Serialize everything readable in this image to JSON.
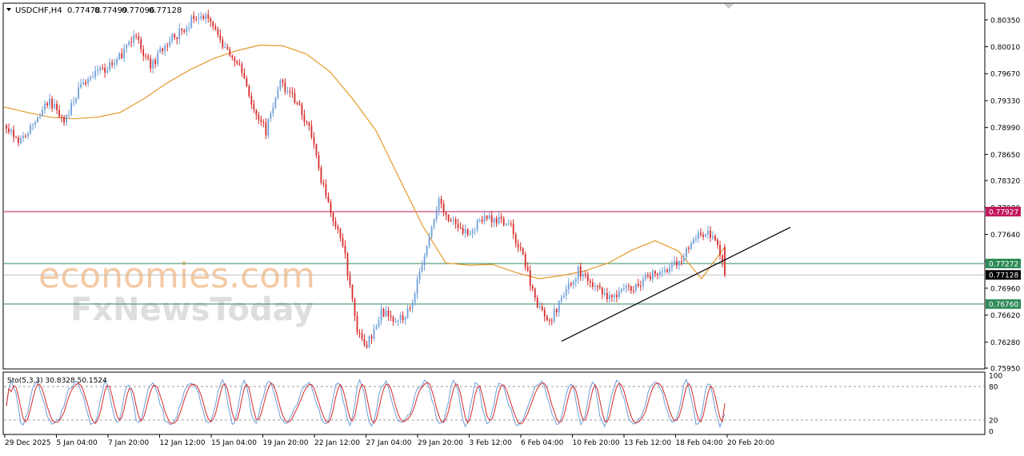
{
  "chart_data": {
    "type": "candlestick",
    "symbol_header": "USDCHF,H4",
    "ohlc_readout": [
      "0.77478",
      "0.77499",
      "0.77096",
      "0.77128"
    ],
    "price_axis_ticks": [
      "0.80350",
      "0.80010",
      "0.79670",
      "0.79330",
      "0.78990",
      "0.78650",
      "0.78320",
      "0.77980",
      "0.77640",
      "0.77300",
      "0.76960",
      "0.76620",
      "0.76280",
      "0.75950"
    ],
    "ylim": [
      0.7595,
      0.8055
    ],
    "time_axis_labels": [
      "29 Dec 2025",
      "5 Jan 04:00",
      "7 Jan 20:00",
      "12 Jan 12:00",
      "15 Jan 04:00",
      "19 Jan 20:00",
      "22 Jan 12:00",
      "27 Jan 04:00",
      "29 Jan 20:00",
      "3 Feb 12:00",
      "6 Feb 04:00",
      "10 Feb 20:00",
      "13 Feb 12:00",
      "18 Feb 04:00",
      "20 Feb 20:00"
    ],
    "price_levels": [
      {
        "label": "0.77927",
        "value": 0.77927,
        "color": "#c2185b"
      },
      {
        "label": "0.77272",
        "value": 0.77272,
        "color": "#2e8b57"
      },
      {
        "label": "0.77128",
        "value": 0.77128,
        "color": "#000000"
      },
      {
        "label": "0.76760",
        "value": 0.7676,
        "color": "#2e8b57"
      }
    ],
    "trendline": [
      [
        0.0,
        0.7629
      ],
      [
        1.0,
        0.7773
      ]
    ],
    "ma_color": "#e39a2b",
    "bull_color": "#6f9fd8",
    "bear_color": "#d62a2a",
    "close_path": [
      [
        0,
        0.7895
      ],
      [
        6,
        0.788
      ],
      [
        12,
        0.7908
      ],
      [
        18,
        0.7932
      ],
      [
        24,
        0.7905
      ],
      [
        30,
        0.7945
      ],
      [
        36,
        0.7965
      ],
      [
        42,
        0.7975
      ],
      [
        48,
        0.799
      ],
      [
        54,
        0.8015
      ],
      [
        60,
        0.7975
      ],
      [
        66,
        0.8005
      ],
      [
        72,
        0.8018
      ],
      [
        78,
        0.8038
      ],
      [
        84,
        0.8042
      ],
      [
        90,
        0.8002
      ],
      [
        96,
        0.7985
      ],
      [
        102,
        0.793
      ],
      [
        108,
        0.7895
      ],
      [
        114,
        0.7955
      ],
      [
        120,
        0.7935
      ],
      [
        126,
        0.7898
      ],
      [
        132,
        0.7822
      ],
      [
        136,
        0.7785
      ],
      [
        140,
        0.7755
      ],
      [
        146,
        0.7642
      ],
      [
        150,
        0.7622
      ],
      [
        156,
        0.7668
      ],
      [
        162,
        0.7652
      ],
      [
        168,
        0.767
      ],
      [
        174,
        0.774
      ],
      [
        180,
        0.7805
      ],
      [
        186,
        0.7778
      ],
      [
        192,
        0.7762
      ],
      [
        198,
        0.7785
      ],
      [
        204,
        0.7782
      ],
      [
        210,
        0.7772
      ],
      [
        216,
        0.7728
      ],
      [
        220,
        0.7678
      ],
      [
        226,
        0.7655
      ],
      [
        232,
        0.7685
      ],
      [
        238,
        0.7718
      ],
      [
        244,
        0.7702
      ],
      [
        250,
        0.7688
      ],
      [
        256,
        0.769
      ],
      [
        262,
        0.77
      ],
      [
        268,
        0.7712
      ],
      [
        274,
        0.7718
      ],
      [
        280,
        0.7728
      ],
      [
        286,
        0.7758
      ],
      [
        292,
        0.7765
      ],
      [
        296,
        0.7748
      ],
      [
        299,
        0.7713
      ]
    ],
    "ma_values": [
      0.7925,
      0.7918,
      0.7912,
      0.791,
      0.7912,
      0.7918,
      0.7935,
      0.7955,
      0.7972,
      0.7986,
      0.7996,
      0.8003,
      0.8002,
      0.7992,
      0.797,
      0.7935,
      0.7895,
      0.7835,
      0.7775,
      0.7728,
      0.7725,
      0.7726,
      0.7716,
      0.7708,
      0.7712,
      0.7718,
      0.7728,
      0.7744,
      0.7756,
      0.7743,
      0.7708,
      0.7748
    ],
    "oscillator": {
      "label": "Sto(5,3,3) 30.8328 50.1524",
      "levels": [
        "100",
        "80",
        "20",
        "0"
      ],
      "main_color": "#d62a2a",
      "signal_color": "#6f9fd8"
    }
  },
  "watermark": [
    "economies.com",
    "FxNewsToday"
  ]
}
